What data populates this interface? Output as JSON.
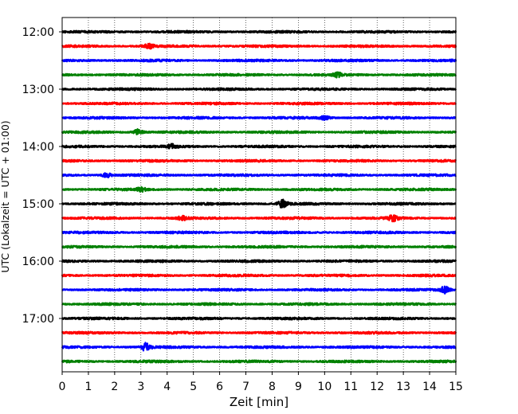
{
  "chart_data": {
    "type": "line",
    "title": "",
    "xlabel": "Zeit  [min]",
    "ylabel": "UTC (Lokalzeit = UTC + 01:00)",
    "xlim": [
      0,
      15
    ],
    "x_ticks": [
      0,
      1,
      2,
      3,
      4,
      5,
      6,
      7,
      8,
      9,
      10,
      11,
      12,
      13,
      14,
      15
    ],
    "grid": "vertical-dotted",
    "legend": "none",
    "trace_interval_minutes": 15,
    "start_time": "12:00",
    "y_tick_labels": [
      "12:00",
      "13:00",
      "14:00",
      "15:00",
      "16:00",
      "17:00"
    ],
    "color_cycle": [
      "#000000",
      "#ff0000",
      "#0000ff",
      "#008000"
    ],
    "traces": [
      {
        "start": "12:00",
        "color": "#000000",
        "events": []
      },
      {
        "start": "12:15",
        "color": "#ff0000",
        "events": [
          {
            "min": 3.3,
            "amp": 1.5
          }
        ]
      },
      {
        "start": "12:30",
        "color": "#0000ff",
        "events": []
      },
      {
        "start": "12:45",
        "color": "#008000",
        "events": [
          {
            "min": 10.5,
            "amp": 1.4
          }
        ]
      },
      {
        "start": "13:00",
        "color": "#000000",
        "events": []
      },
      {
        "start": "13:15",
        "color": "#ff0000",
        "events": []
      },
      {
        "start": "13:30",
        "color": "#0000ff",
        "events": [
          {
            "min": 10.0,
            "amp": 1.3
          }
        ]
      },
      {
        "start": "13:45",
        "color": "#008000",
        "events": [
          {
            "min": 2.9,
            "amp": 2.0
          }
        ]
      },
      {
        "start": "14:00",
        "color": "#000000",
        "events": [
          {
            "min": 4.2,
            "amp": 1.5
          }
        ]
      },
      {
        "start": "14:15",
        "color": "#ff0000",
        "events": []
      },
      {
        "start": "14:30",
        "color": "#0000ff",
        "events": [
          {
            "min": 1.7,
            "amp": 1.4
          }
        ]
      },
      {
        "start": "14:45",
        "color": "#008000",
        "events": [
          {
            "min": 3.0,
            "amp": 1.3
          }
        ]
      },
      {
        "start": "15:00",
        "color": "#000000",
        "events": [
          {
            "min": 8.4,
            "amp": 3.0
          }
        ]
      },
      {
        "start": "15:15",
        "color": "#ff0000",
        "events": [
          {
            "min": 4.6,
            "amp": 1.4
          },
          {
            "min": 12.6,
            "amp": 2.0
          }
        ]
      },
      {
        "start": "15:30",
        "color": "#0000ff",
        "events": []
      },
      {
        "start": "15:45",
        "color": "#008000",
        "events": []
      },
      {
        "start": "16:00",
        "color": "#000000",
        "events": []
      },
      {
        "start": "16:15",
        "color": "#ff0000",
        "events": []
      },
      {
        "start": "16:30",
        "color": "#0000ff",
        "events": [
          {
            "min": 14.6,
            "amp": 2.6
          }
        ]
      },
      {
        "start": "16:45",
        "color": "#008000",
        "events": []
      },
      {
        "start": "17:00",
        "color": "#000000",
        "events": []
      },
      {
        "start": "17:15",
        "color": "#ff0000",
        "events": []
      },
      {
        "start": "17:30",
        "color": "#0000ff",
        "events": [
          {
            "min": 3.2,
            "amp": 3.0
          }
        ]
      },
      {
        "start": "17:45",
        "color": "#008000",
        "events": []
      }
    ]
  }
}
